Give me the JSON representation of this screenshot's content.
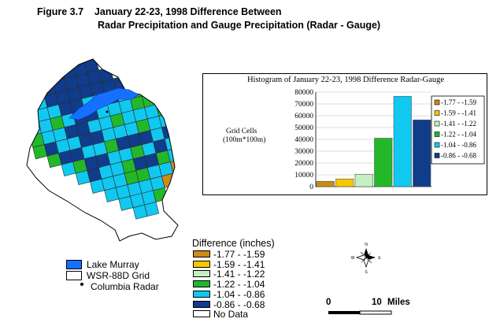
{
  "title": {
    "line1": "Figure 3.7    January 22-23, 1998 Difference Between",
    "line2": "Radar Precipitation and Gauge Precipitation (Radar - Gauge)"
  },
  "colors": {
    "c1": "#cc8c14",
    "c2": "#f7c800",
    "c3": "#c4f0c4",
    "c4": "#22b82a",
    "c5": "#10c8f0",
    "c6": "#103c8c",
    "nodata": "#ffffff",
    "lake": "#1670ff"
  },
  "chart_data": {
    "type": "bar",
    "title": "Histogram of January 22-23, 1998 Difference Radar-Gauge",
    "ylabel_line1": "Grid Cells",
    "ylabel_line2": "(100m*100m)",
    "ylim": [
      0,
      80000
    ],
    "yticks": [
      "0",
      "10000",
      "20000",
      "30000",
      "40000",
      "50000",
      "60000",
      "70000",
      "80000"
    ],
    "categories": [
      "-1.77 - -1.59",
      "-1.59 - -1.41",
      "-1.41 - -1.22",
      "-1.22 - -1.04",
      "-1.04 - -0.86",
      "-0.86 - -0.68"
    ],
    "values": [
      4500,
      6500,
      10500,
      41000,
      76500,
      56500
    ],
    "legend_position": "right"
  },
  "map_legend": {
    "title": "Difference (inches)",
    "items": [
      "-1.77 - -1.59",
      "-1.59 - -1.41",
      "-1.41 - -1.22",
      "-1.22 - -1.04",
      "-1.04 - -0.86",
      "-0.86 - -0.68",
      "No Data"
    ]
  },
  "feature_legend": {
    "lake": "Lake Murray",
    "grid": "WSR-88D Grid",
    "radar": "Columbia Radar"
  },
  "scale": {
    "start": "0",
    "end": "10",
    "units": "Miles"
  },
  "compass": {
    "n": "N",
    "s": "S",
    "e": "E",
    "w": "W"
  },
  "map_grid": [
    "....LLLL.......",
    "...LLLLLL......",
    "..CLLLLLLLL....",
    "..CCLLCCDCGG...",
    ".CCGCDDCCCGGC..",
    ".GCCDDCCGCCCGG.",
    ".GDCCDDCCCGCCG.",
    "..GDDCCGDDLCDG.",
    "...CGDDCCGCLCW.",
    "....CDCCGLDGCCW",
    ".....CCCGGCCAOO",
    "......CCCCCAAO.",
    ".......CCCG....",
    "........CC....."
  ]
}
